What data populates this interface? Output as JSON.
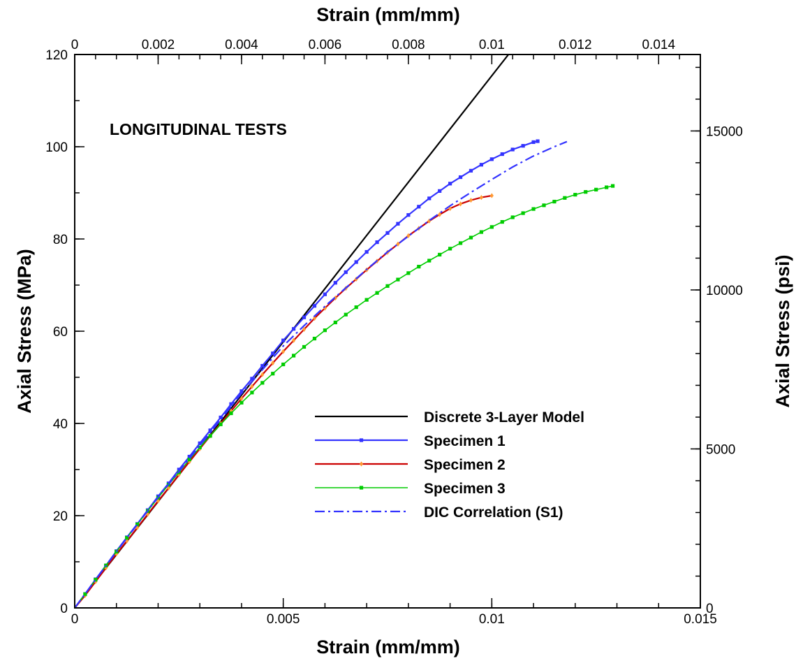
{
  "chart_data": {
    "type": "line",
    "title": "LONGITUDINAL TESTS",
    "xlabel": "Strain (mm/mm)",
    "x2label": "Strain (mm/mm)",
    "ylabel": "Axial Stress (MPa)",
    "y2label": "Axial Stress (psi)",
    "xlim": [
      0,
      0.015
    ],
    "x2lim": [
      0,
      0.015
    ],
    "ylim": [
      0,
      120
    ],
    "y2lim": [
      0,
      17404.5
    ],
    "x_ticks": [
      0,
      0.005,
      0.01,
      0.015
    ],
    "x_tick_labels": [
      "0",
      "0.005",
      "0.01",
      "0.015"
    ],
    "x2_ticks": [
      0,
      0.002,
      0.004,
      0.006,
      0.008,
      0.01,
      0.012,
      0.014
    ],
    "x2_tick_labels": [
      "0",
      "0.002",
      "0.004",
      "0.006",
      "0.008",
      "0.01",
      "0.012",
      "0.014"
    ],
    "y_ticks": [
      0,
      20,
      40,
      60,
      80,
      100,
      120
    ],
    "y_tick_labels": [
      "0",
      "20",
      "40",
      "60",
      "80",
      "100",
      "120"
    ],
    "y2_ticks": [
      0,
      5000,
      10000,
      15000
    ],
    "y2_tick_labels": [
      "0",
      "5000",
      "10000",
      "15000"
    ],
    "grid": false,
    "legend_position": "lower-right",
    "series": [
      {
        "name": "Discrete 3-Layer Model",
        "color": "#000000",
        "style": "solid",
        "marker": "none",
        "x": [
          0,
          0.0104
        ],
        "y": [
          0,
          120
        ]
      },
      {
        "name": "Specimen 1",
        "color": "#3333ff",
        "style": "solid",
        "marker": "square",
        "x": [
          0,
          0.00025,
          0.0005,
          0.00075,
          0.001,
          0.00125,
          0.0015,
          0.00175,
          0.002,
          0.00225,
          0.0025,
          0.00275,
          0.003,
          0.00325,
          0.0035,
          0.00375,
          0.004,
          0.00425,
          0.0045,
          0.00475,
          0.005,
          0.00525,
          0.0055,
          0.00575,
          0.006,
          0.00625,
          0.0065,
          0.00675,
          0.007,
          0.00725,
          0.0075,
          0.00775,
          0.008,
          0.00825,
          0.0085,
          0.00875,
          0.009,
          0.00925,
          0.0095,
          0.00975,
          0.01,
          0.01025,
          0.0105,
          0.01075,
          0.011,
          0.0111
        ],
        "y": [
          0,
          3.0,
          6.2,
          9.2,
          12.3,
          15.3,
          18.2,
          21.2,
          24.2,
          27.0,
          30.0,
          32.8,
          35.7,
          38.5,
          41.3,
          44.2,
          47.0,
          49.7,
          52.5,
          55.2,
          58.0,
          60.5,
          63.0,
          65.5,
          68.0,
          70.5,
          72.8,
          75.0,
          77.2,
          79.3,
          81.3,
          83.3,
          85.2,
          87.0,
          88.8,
          90.4,
          92.0,
          93.4,
          94.8,
          96.1,
          97.3,
          98.4,
          99.4,
          100.2,
          101.0,
          101.2
        ]
      },
      {
        "name": "Specimen 2",
        "color": "#cc0000",
        "style": "solid",
        "marker": "diamond",
        "marker_color": "#ff9933",
        "x": [
          0,
          0.00025,
          0.0005,
          0.00075,
          0.001,
          0.00125,
          0.0015,
          0.00175,
          0.002,
          0.00225,
          0.0025,
          0.00275,
          0.003,
          0.00325,
          0.0035,
          0.00375,
          0.004,
          0.00425,
          0.0045,
          0.00475,
          0.005,
          0.00525,
          0.0055,
          0.00575,
          0.006,
          0.00625,
          0.0065,
          0.00675,
          0.007,
          0.00725,
          0.0075,
          0.00775,
          0.008,
          0.00825,
          0.0085,
          0.00875,
          0.009,
          0.00925,
          0.0095,
          0.00975,
          0.01
        ],
        "y": [
          0,
          2.7,
          5.7,
          8.7,
          11.7,
          14.5,
          17.4,
          20.3,
          23.2,
          26.0,
          28.9,
          31.7,
          34.5,
          37.3,
          40.0,
          42.7,
          45.4,
          48.0,
          50.6,
          53.1,
          55.6,
          58.0,
          60.4,
          62.8,
          65.0,
          67.2,
          69.3,
          71.3,
          73.3,
          75.2,
          77.1,
          78.9,
          80.7,
          82.3,
          83.9,
          85.3,
          86.6,
          87.6,
          88.4,
          89.0,
          89.4
        ]
      },
      {
        "name": "Specimen 3",
        "color": "#00cc00",
        "style": "solid",
        "marker": "square",
        "x": [
          0,
          0.00025,
          0.0005,
          0.00075,
          0.001,
          0.00125,
          0.0015,
          0.00175,
          0.002,
          0.00225,
          0.0025,
          0.00275,
          0.003,
          0.00325,
          0.0035,
          0.00375,
          0.004,
          0.00425,
          0.0045,
          0.00475,
          0.005,
          0.00525,
          0.0055,
          0.00575,
          0.006,
          0.00625,
          0.0065,
          0.00675,
          0.007,
          0.00725,
          0.0075,
          0.00775,
          0.008,
          0.00825,
          0.0085,
          0.00875,
          0.009,
          0.00925,
          0.0095,
          0.00975,
          0.01,
          0.01025,
          0.0105,
          0.01075,
          0.011,
          0.01125,
          0.0115,
          0.01175,
          0.012,
          0.01225,
          0.0125,
          0.01275,
          0.0129
        ],
        "y": [
          0,
          3.0,
          6.1,
          9.2,
          12.2,
          15.2,
          18.1,
          21.0,
          23.9,
          26.7,
          29.4,
          32.2,
          34.8,
          37.3,
          39.8,
          42.2,
          44.5,
          46.7,
          48.8,
          50.8,
          52.8,
          54.7,
          56.6,
          58.4,
          60.2,
          61.9,
          63.6,
          65.2,
          66.8,
          68.3,
          69.8,
          71.2,
          72.6,
          74.0,
          75.3,
          76.6,
          77.9,
          79.1,
          80.3,
          81.5,
          82.6,
          83.7,
          84.7,
          85.6,
          86.5,
          87.3,
          88.1,
          88.9,
          89.6,
          90.2,
          90.7,
          91.2,
          91.5
        ]
      },
      {
        "name": "DIC Correlation (S1)",
        "color": "#3333ff",
        "style": "dashdot",
        "marker": "none",
        "x": [
          0,
          0.001,
          0.002,
          0.003,
          0.004,
          0.005,
          0.0055,
          0.006,
          0.0065,
          0.007,
          0.0075,
          0.008,
          0.0085,
          0.009,
          0.0095,
          0.01,
          0.0105,
          0.011,
          0.0115,
          0.0118
        ],
        "y": [
          0,
          12.2,
          24.0,
          35.2,
          46.5,
          56.8,
          61.2,
          65.4,
          69.4,
          73.4,
          77.2,
          80.6,
          84.0,
          87.2,
          90.1,
          92.9,
          95.6,
          98.0,
          100.0,
          101.1
        ]
      }
    ]
  }
}
